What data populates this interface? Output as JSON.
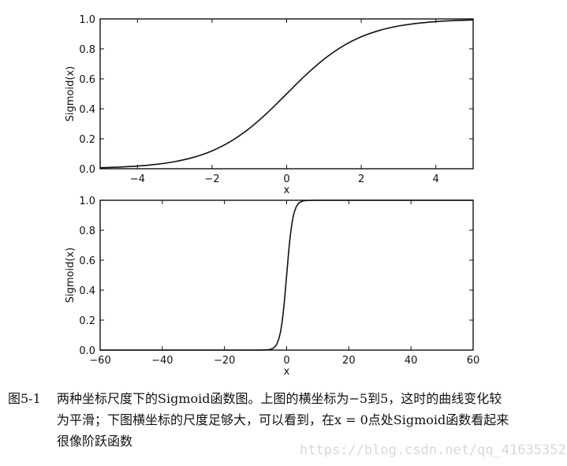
{
  "chart_data": [
    {
      "type": "line",
      "title": "",
      "xlabel": "x",
      "ylabel": "Sigmoid(x)",
      "xlim": [
        -5,
        5
      ],
      "ylim": [
        0,
        1
      ],
      "xticks": [
        -4,
        -2,
        0,
        2,
        4
      ],
      "xtick_labels": [
        "−4",
        "−2",
        "0",
        "2",
        "4"
      ],
      "yticks": [
        0,
        0.2,
        0.4,
        0.6,
        0.8,
        1.0
      ],
      "ytick_labels": [
        "0.0",
        "0.2",
        "0.4",
        "0.6",
        "0.8",
        "1.0"
      ],
      "grid": false,
      "series": [
        {
          "name": "Sigmoid(x)",
          "color": "#111111",
          "x": [
            -5,
            -4.5,
            -4,
            -3.5,
            -3,
            -2.5,
            -2,
            -1.5,
            -1,
            -0.5,
            0,
            0.5,
            1,
            1.5,
            2,
            2.5,
            3,
            3.5,
            4,
            4.5,
            5
          ],
          "y": [
            0.0067,
            0.011,
            0.018,
            0.0293,
            0.0474,
            0.0759,
            0.1192,
            0.1824,
            0.2689,
            0.3775,
            0.5,
            0.6225,
            0.7311,
            0.8176,
            0.8808,
            0.9241,
            0.9526,
            0.9707,
            0.982,
            0.989,
            0.9933
          ]
        }
      ]
    },
    {
      "type": "line",
      "title": "",
      "xlabel": "x",
      "ylabel": "Sigmoid(x)",
      "xlim": [
        -60,
        60
      ],
      "ylim": [
        0,
        1
      ],
      "xticks": [
        -60,
        -40,
        -20,
        0,
        20,
        40,
        60
      ],
      "xtick_labels": [
        "−60",
        "−40",
        "−20",
        "0",
        "20",
        "40",
        "60"
      ],
      "yticks": [
        0,
        0.2,
        0.4,
        0.6,
        0.8,
        1.0
      ],
      "ytick_labels": [
        "0.0",
        "0.2",
        "0.4",
        "0.6",
        "0.8",
        "1.0"
      ],
      "grid": false,
      "series": [
        {
          "name": "Sigmoid(x)",
          "color": "#111111",
          "x": [
            -60,
            -40,
            -20,
            -10,
            -6,
            -5,
            -4,
            -3,
            -2,
            -1,
            0,
            1,
            2,
            3,
            4,
            5,
            6,
            10,
            20,
            40,
            60
          ],
          "y": [
            0,
            0,
            0,
            5e-05,
            0.0025,
            0.0067,
            0.018,
            0.0474,
            0.1192,
            0.2689,
            0.5,
            0.7311,
            0.8808,
            0.9526,
            0.982,
            0.9933,
            0.9975,
            1,
            1,
            1,
            1
          ]
        }
      ]
    }
  ],
  "caption": {
    "label": "图5-1",
    "lines": [
      "两种坐标尺度下的Sigmoid函数图。上图的横坐标为−5到5，这时的曲线变化较",
      "为平滑；下图横坐标的尺度足够大，可以看到，在x = 0点处Sigmoid函数看起来",
      "很像阶跃函数"
    ]
  },
  "watermark": "https://blog.csdn.net/qq_41635352"
}
